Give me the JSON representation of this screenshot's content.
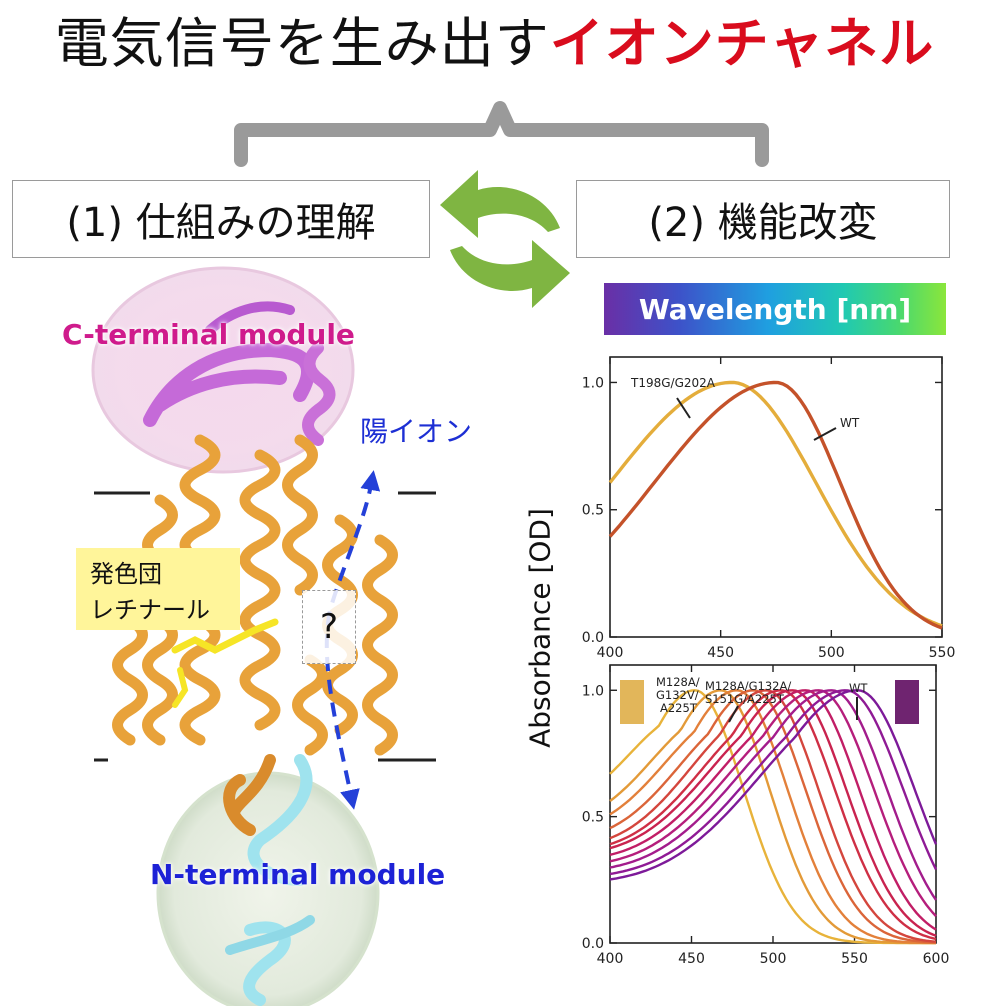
{
  "title": {
    "black": "電気信号を生み出す",
    "red": "イオンチャネル"
  },
  "box_understanding": "(1) 仕組みの理解",
  "box_modification": "(2) 機能改変",
  "wavelength_bar": "Wavelength [nm]",
  "structure": {
    "c_terminal": "C-terminal module",
    "n_terminal": "N-terminal module",
    "cation": "陽イオン",
    "chromophore_line1": "発色団",
    "chromophore_line2": "レチナール",
    "unknown": "?"
  },
  "y_axis_label": "Absorbance [OD]",
  "chart_data": [
    {
      "type": "line",
      "xlim": [
        400,
        550
      ],
      "ylim": [
        0,
        1.1
      ],
      "xticks": [
        "400",
        "450",
        "500",
        "550"
      ],
      "yticks": [
        "0.0",
        "0.5",
        "1.0"
      ],
      "series": [
        {
          "name": "T198G/G202A",
          "color": "#e4ad3b",
          "peak": 455,
          "sl": 55,
          "sr": 38,
          "x": [
            400,
            425,
            450,
            455,
            475,
            500,
            525,
            550
          ],
          "y": [
            0.6,
            0.87,
            0.99,
            1.0,
            0.89,
            0.42,
            0.1,
            0.05
          ]
        },
        {
          "name": "WT",
          "color": "#c4522a",
          "peak": 475,
          "sl": 55,
          "sr": 29,
          "x": [
            400,
            425,
            450,
            475,
            500,
            525,
            550
          ],
          "y": [
            0.42,
            0.68,
            0.9,
            1.0,
            0.7,
            0.22,
            0.05
          ]
        }
      ],
      "annotations": [
        "T198G/G202A",
        "WT"
      ]
    },
    {
      "type": "line",
      "xlim": [
        400,
        600
      ],
      "ylim": [
        0,
        1.1
      ],
      "xticks": [
        "400",
        "450",
        "500",
        "550",
        "600"
      ],
      "yticks": [
        "0.0",
        "0.5",
        "1.0"
      ],
      "series": [
        {
          "color": "#e8b33a",
          "peak": 452,
          "sl": 40,
          "sr": 30,
          "base": 0.42
        },
        {
          "color": "#e39a38",
          "peak": 468,
          "sl": 42,
          "sr": 30,
          "base": 0.4
        },
        {
          "color": "#e3803a",
          "peak": 478,
          "sl": 44,
          "sr": 31,
          "base": 0.38
        },
        {
          "color": "#db6539",
          "peak": 488,
          "sl": 45,
          "sr": 32,
          "base": 0.36
        },
        {
          "color": "#d4463d",
          "peak": 496,
          "sl": 46,
          "sr": 32,
          "base": 0.34
        },
        {
          "color": "#cf2f45",
          "peak": 505,
          "sl": 48,
          "sr": 33,
          "base": 0.33
        },
        {
          "color": "#c9234f",
          "peak": 512,
          "sl": 50,
          "sr": 33,
          "base": 0.32
        },
        {
          "color": "#c11e66",
          "peak": 520,
          "sl": 52,
          "sr": 33,
          "base": 0.3
        },
        {
          "color": "#b51e7c",
          "peak": 528,
          "sl": 54,
          "sr": 34,
          "base": 0.28
        },
        {
          "color": "#a31c8c",
          "peak": 536,
          "sl": 56,
          "sr": 34,
          "base": 0.26
        },
        {
          "color": "#8f1a95",
          "peak": 545,
          "sl": 58,
          "sr": 35,
          "base": 0.24
        },
        {
          "color": "#7d1a99",
          "peak": 552,
          "sl": 60,
          "sr": 35,
          "base": 0.22
        }
      ],
      "annotations": [
        "M128A/",
        "G132V/",
        "A225T",
        "M128A/G132A/",
        "S151G/A225T",
        "WT"
      ]
    }
  ]
}
